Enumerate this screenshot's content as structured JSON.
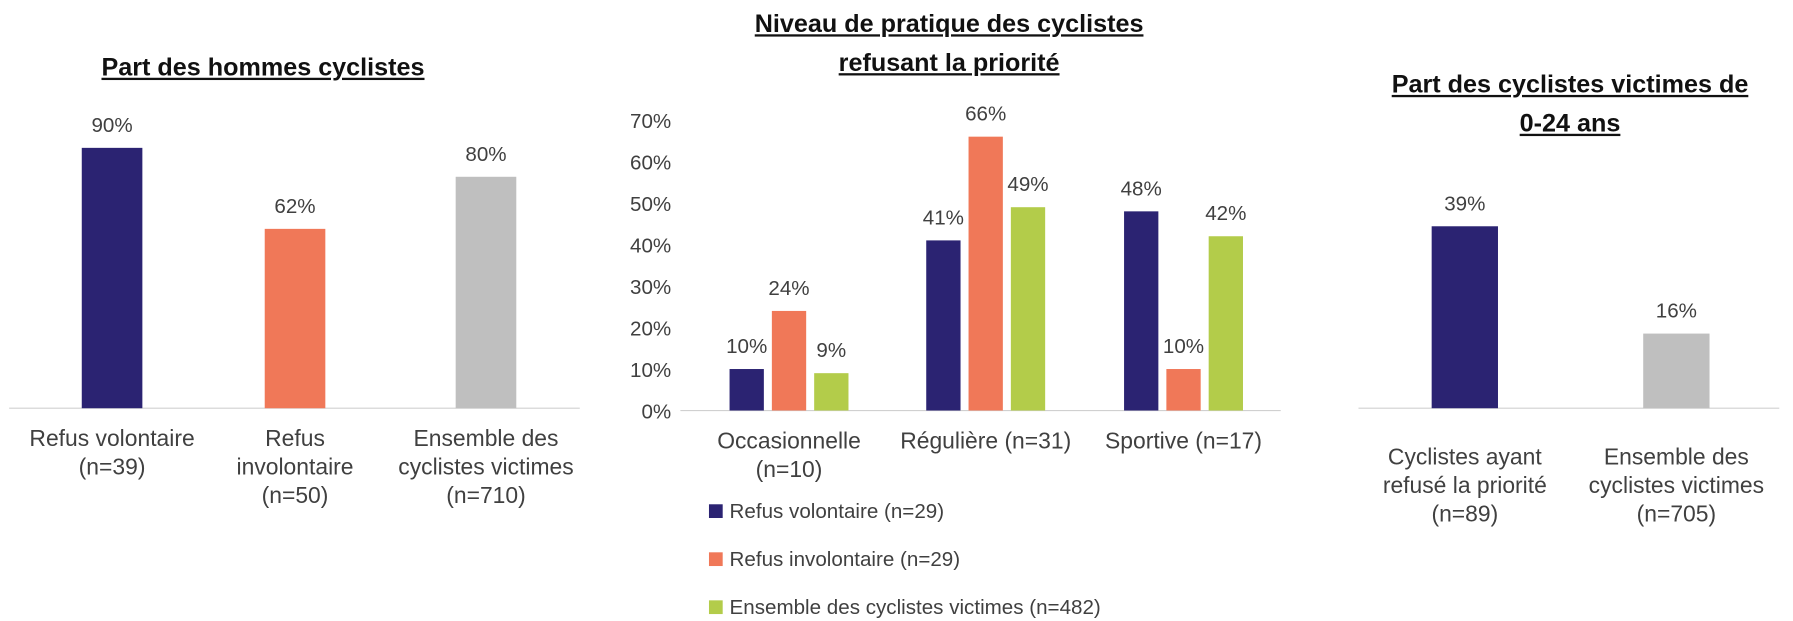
{
  "chart_data": [
    {
      "type": "bar",
      "title": "Part des hommes cyclistes",
      "categories": [
        "Refus volontaire (n=39)",
        "Refus involontaire (n=50)",
        "Ensemble des cyclistes victimes (n=710)"
      ],
      "values": [
        90,
        62,
        80
      ],
      "value_labels": [
        "90%",
        "62%",
        "80%"
      ],
      "colors": [
        "#2b2372",
        "#f07858",
        "#bfbfbf"
      ]
    },
    {
      "type": "bar",
      "title": "Niveau de pratique des cyclistes refusant la priorité",
      "categories": [
        "Occasionnelle (n=10)",
        "Régulière (n=31)",
        "Sportive (n=17)"
      ],
      "series": [
        {
          "name": "Refus volontaire (n=29)",
          "color": "#2b2372",
          "values": [
            10,
            41,
            48
          ],
          "value_labels": [
            "10%",
            "41%",
            "48%"
          ]
        },
        {
          "name": "Refus involontaire (n=29)",
          "color": "#f07858",
          "values": [
            24,
            66,
            10
          ],
          "value_labels": [
            "24%",
            "66%",
            "10%"
          ]
        },
        {
          "name": "Ensemble des cyclistes victimes (n=482)",
          "color": "#b3cc4a",
          "values": [
            9,
            49,
            42
          ],
          "value_labels": [
            "9%",
            "49%",
            "42%"
          ]
        }
      ],
      "ylim": [
        0,
        70
      ],
      "yticks": [
        {
          "value": 0,
          "label": "0%"
        },
        {
          "value": 10,
          "label": "10%"
        },
        {
          "value": 20,
          "label": "20%"
        },
        {
          "value": 30,
          "label": "30%"
        },
        {
          "value": 40,
          "label": "40%"
        },
        {
          "value": 50,
          "label": "50%"
        },
        {
          "value": 60,
          "label": "60%"
        },
        {
          "value": 70,
          "label": "70%"
        }
      ],
      "legend": "bottom"
    },
    {
      "type": "bar",
      "title": "Part des cyclistes victimes de 0-24 ans",
      "categories": [
        "Cyclistes ayant refusé la priorité (n=89)",
        "Ensemble des cyclistes victimes (n=705)"
      ],
      "values": [
        39,
        16
      ],
      "value_labels": [
        "39%",
        "16%"
      ],
      "colors": [
        "#2b2372",
        "#bfbfbf"
      ]
    }
  ]
}
